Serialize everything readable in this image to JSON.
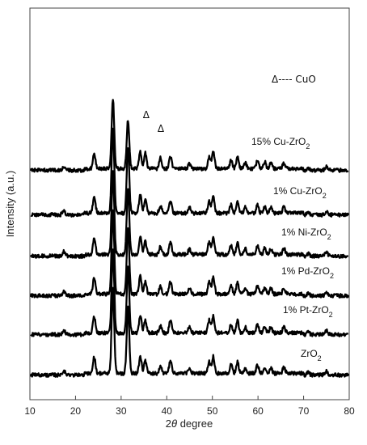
{
  "chart_data": {
    "type": "line",
    "title": "",
    "xlabel": "2θ degree",
    "xlabel_prefix": "2",
    "xlabel_symbol": "θ",
    "xlabel_suffix": " degree",
    "ylabel": "Intensity (a.u.)",
    "xlim": [
      10,
      80
    ],
    "xticks": [
      10,
      20,
      30,
      40,
      50,
      60,
      70,
      80
    ],
    "grid": false,
    "legend_text": "Δ---- CuO",
    "markers": [
      {
        "symbol": "Δ",
        "x": 35.5
      },
      {
        "symbol": "Δ",
        "x": 38.7
      }
    ],
    "peak_positions": [
      17.4,
      24.1,
      28.2,
      31.5,
      34.2,
      35.3,
      38.6,
      40.8,
      45.0,
      49.3,
      50.2,
      54.1,
      55.5,
      57.2,
      59.9,
      61.5,
      62.8,
      65.7,
      71.0,
      75.0
    ],
    "series": [
      {
        "name": "ZrO",
        "subscript": "2",
        "peak_heights": [
          0.6,
          2.0,
          10.4,
          8.1,
          2.1,
          1.5,
          0.9,
          1.5,
          0.7,
          1.4,
          2.1,
          1.1,
          1.4,
          0.7,
          1.0,
          0.8,
          0.7,
          0.8,
          0.3,
          0.5
        ]
      },
      {
        "name": "1% Pt-ZrO",
        "subscript": "2",
        "peak_heights": [
          0.6,
          2.0,
          10.2,
          8.1,
          2.2,
          1.5,
          0.9,
          1.5,
          0.7,
          1.6,
          2.1,
          1.0,
          1.5,
          0.7,
          1.0,
          0.8,
          0.7,
          0.8,
          0.3,
          0.5
        ]
      },
      {
        "name": "1% Pd-ZrO",
        "subscript": "2",
        "peak_heights": [
          0.6,
          2.0,
          10.3,
          8.1,
          2.2,
          1.5,
          0.9,
          1.5,
          0.7,
          1.5,
          2.1,
          1.1,
          1.4,
          0.7,
          1.0,
          0.8,
          0.7,
          0.8,
          0.3,
          0.5
        ]
      },
      {
        "name": "1% Ni-ZrO",
        "subscript": "2",
        "peak_heights": [
          0.6,
          2.0,
          10.3,
          8.1,
          2.2,
          1.6,
          0.9,
          1.5,
          0.7,
          1.5,
          2.1,
          1.1,
          1.4,
          0.7,
          1.0,
          0.8,
          0.7,
          0.8,
          0.3,
          0.5
        ]
      },
      {
        "name": "1% Cu-ZrO",
        "subscript": "2",
        "peak_heights": [
          0.6,
          2.0,
          10.5,
          8.1,
          2.2,
          1.6,
          0.9,
          1.5,
          0.7,
          1.5,
          2.1,
          1.1,
          1.4,
          0.7,
          1.0,
          0.8,
          0.7,
          0.8,
          0.3,
          0.5
        ]
      },
      {
        "name": "15% Cu-ZrO",
        "subscript": "2",
        "peak_heights": [
          0.5,
          1.8,
          8.6,
          6.0,
          2.1,
          2.0,
          1.3,
          1.5,
          0.6,
          1.5,
          2.1,
          1.0,
          1.4,
          0.7,
          1.0,
          0.8,
          0.7,
          0.8,
          0.3,
          0.4
        ]
      }
    ]
  }
}
